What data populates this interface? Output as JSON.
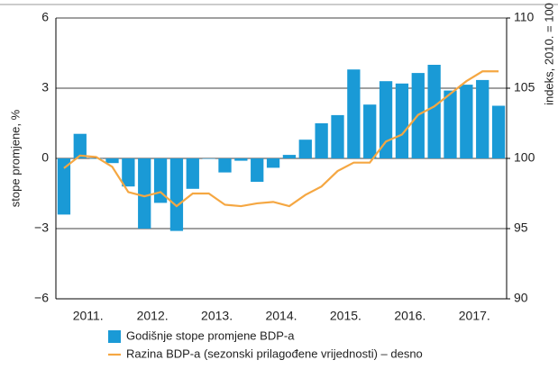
{
  "chart_data": {
    "type": "bar_line",
    "y_label": "stope promjene, %",
    "y2_label": "indeks, 2010. = 100",
    "categories": [
      null,
      "2011.",
      null,
      null,
      null,
      "2012.",
      null,
      null,
      null,
      "2013.",
      null,
      null,
      null,
      "2014.",
      null,
      null,
      null,
      "2015.",
      null,
      null,
      null,
      "2016.",
      null,
      null,
      null,
      "2017.",
      null,
      null
    ],
    "ylim": [
      -6,
      6
    ],
    "yticks": [
      {
        "value": -6,
        "label": "−6"
      },
      {
        "value": -3,
        "label": "−3"
      },
      0,
      3,
      6
    ],
    "y2lim": [
      90,
      110
    ],
    "y2ticks": [
      90,
      95,
      100,
      105,
      110
    ],
    "grid": true,
    "series": [
      {
        "name": "Godišnje stope promjene BDP-a",
        "type": "bar",
        "color": "#1a9ad6",
        "values": [
          -2.4,
          1.05,
          0.0,
          -0.2,
          -1.2,
          -3.0,
          -1.9,
          -3.1,
          -1.3,
          0.0,
          -0.6,
          -0.1,
          -1.0,
          -0.4,
          0.15,
          0.8,
          1.5,
          1.85,
          3.8,
          2.3,
          3.3,
          3.2,
          3.65,
          4.0,
          2.9,
          3.15,
          3.35,
          2.25
        ]
      },
      {
        "name": "Razina BDP-a (sezonski prilagođene vrijednosti) – desno",
        "type": "line",
        "axis": "y2",
        "color": "#f5a742",
        "values": [
          99.3,
          100.2,
          100.1,
          99.4,
          97.6,
          97.3,
          97.6,
          96.6,
          97.5,
          97.5,
          96.7,
          96.6,
          96.8,
          96.9,
          96.6,
          97.4,
          98.0,
          99.1,
          99.7,
          99.7,
          101.2,
          101.7,
          103.1,
          103.7,
          104.6,
          105.5,
          106.2,
          106.2
        ]
      }
    ]
  }
}
